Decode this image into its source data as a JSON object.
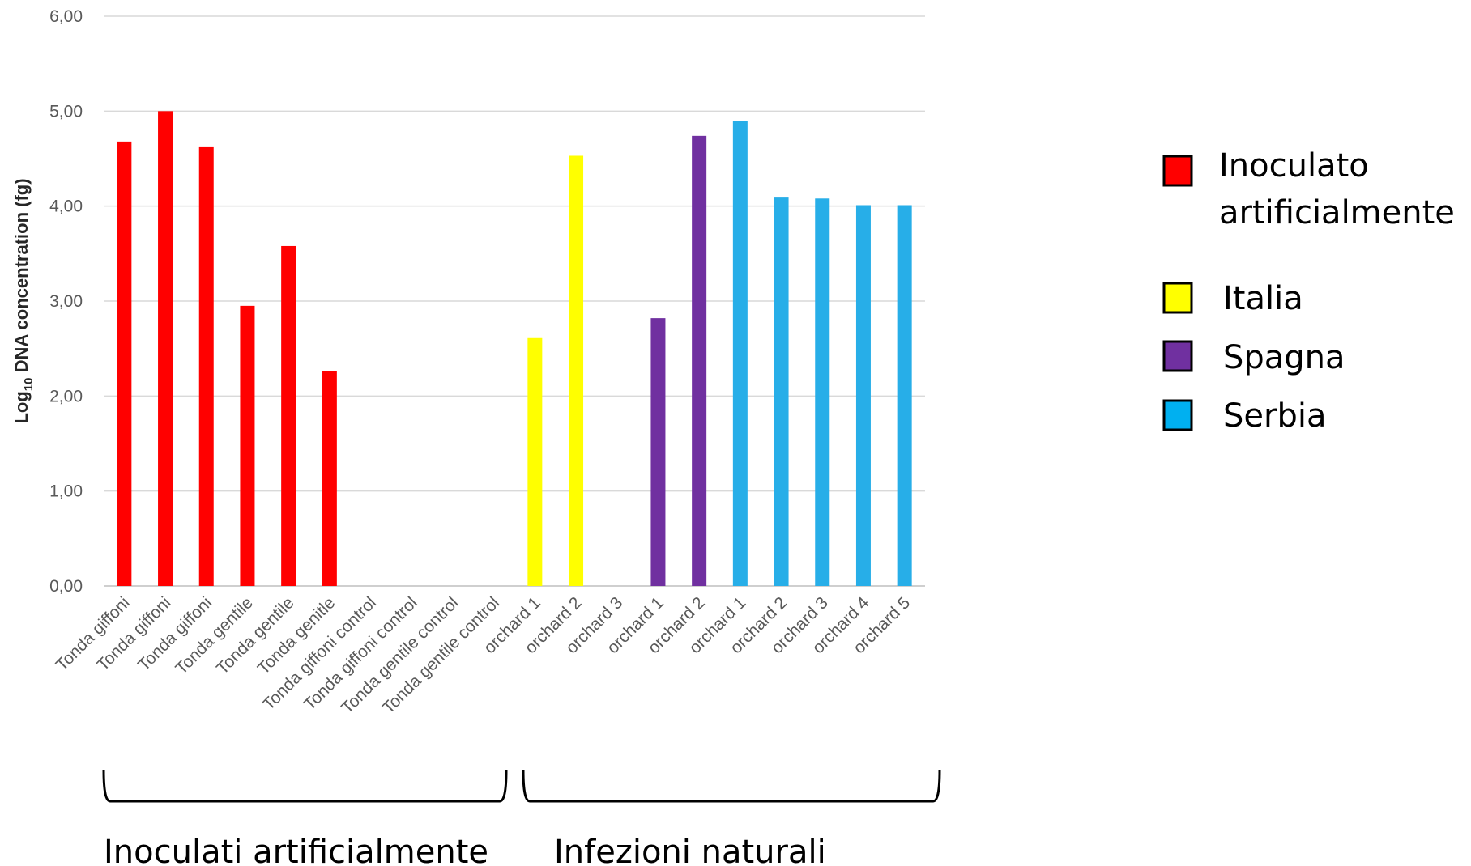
{
  "chart_data": {
    "type": "bar",
    "title": "",
    "xlabel": "",
    "ylabel_main": "Log",
    "ylabel_sub": "10",
    "ylabel_rest": " DNA concentration (fg)",
    "ylim": [
      0,
      6
    ],
    "yticks": [
      "0,00",
      "1,00",
      "2,00",
      "3,00",
      "4,00",
      "5,00",
      "6,00"
    ],
    "grid": true,
    "categories": [
      "Tonda giffoni",
      "Tonda giffoni",
      "Tonda giffoni",
      "Tonda gentile",
      "Tonda gentile",
      "Tonda genitle",
      "Tonda giffoni control",
      "Tonda giffoni control",
      "Tonda gentile control",
      "Tonda gentile control",
      "orchard 1",
      "orchard 2",
      "orchard 3",
      "orchard 1",
      "orchard 2",
      "orchard 1",
      "orchard 2",
      "orchard 3",
      "orchard 4",
      "orchard 5"
    ],
    "values": [
      4.68,
      5.0,
      4.62,
      2.95,
      3.58,
      2.26,
      0,
      0,
      0,
      0,
      2.61,
      4.53,
      0,
      2.82,
      4.74,
      4.9,
      4.09,
      4.08,
      4.01,
      4.01
    ],
    "bar_groups": [
      "inoc",
      "inoc",
      "inoc",
      "inoc",
      "inoc",
      "inoc",
      "inoc",
      "inoc",
      "inoc",
      "inoc",
      "italia",
      "italia",
      "italia",
      "spagna",
      "spagna",
      "serbia",
      "serbia",
      "serbia",
      "serbia",
      "serbia"
    ],
    "colors": {
      "inoc": "#ff0000",
      "italia": "#ffff00",
      "spagna": "#7030a0",
      "serbia": "#27aee8"
    },
    "legend": [
      {
        "key": "inoc",
        "lines": [
          "Inoculato",
          "artificialmente"
        ],
        "color": "#ff0000"
      },
      {
        "key": "italia",
        "lines": [
          "Italia"
        ],
        "color": "#ffff00"
      },
      {
        "key": "spagna",
        "lines": [
          "Spagna"
        ],
        "color": "#7030a0"
      },
      {
        "key": "serbia",
        "lines": [
          "Serbia"
        ],
        "color": "#00b0f0"
      }
    ],
    "brackets": [
      {
        "label": "Inoculati artificialmente",
        "from": 0,
        "to": 9
      },
      {
        "label": "Infezioni naturali",
        "from": 10,
        "to": 19
      }
    ]
  }
}
